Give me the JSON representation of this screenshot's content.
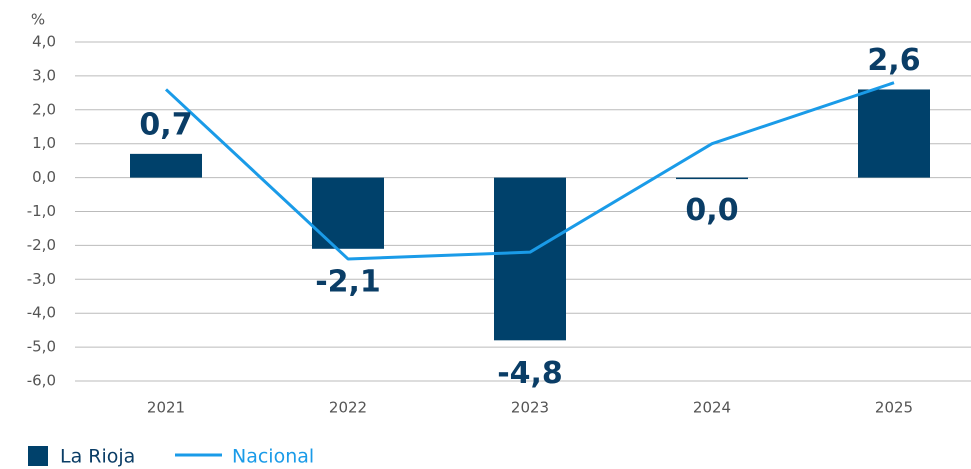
{
  "chart_data": {
    "type": "bar",
    "y_label": "%",
    "categories": [
      "2021",
      "2022",
      "2023",
      "2024",
      "2025"
    ],
    "series": [
      {
        "name": "La Rioja",
        "type": "bar",
        "color": "#00416b",
        "values": [
          0.7,
          -2.1,
          -4.8,
          0.0,
          2.6
        ],
        "value_labels": [
          "0,7",
          "-2,1",
          "-4,8",
          "0,0",
          "2,6"
        ]
      },
      {
        "name": "Nacional",
        "type": "line",
        "color": "#1a9be8",
        "values": [
          2.6,
          -2.4,
          -2.2,
          1.0,
          2.8
        ]
      }
    ],
    "ylim": [
      -6,
      4
    ],
    "yticks": [
      {
        "value": -6,
        "label": "-6,0"
      },
      {
        "value": -5,
        "label": "-5,0"
      },
      {
        "value": -4,
        "label": "-4,0"
      },
      {
        "value": -3,
        "label": "-3,0"
      },
      {
        "value": -2,
        "label": "-2,0"
      },
      {
        "value": -1,
        "label": "-1,0"
      },
      {
        "value": 0,
        "label": "0,0"
      },
      {
        "value": 1,
        "label": "1,0"
      },
      {
        "value": 2,
        "label": "2,0"
      },
      {
        "value": 3,
        "label": "3,0"
      },
      {
        "value": 4,
        "label": "4,0"
      }
    ],
    "grid": true,
    "legend": "bottom-left"
  }
}
